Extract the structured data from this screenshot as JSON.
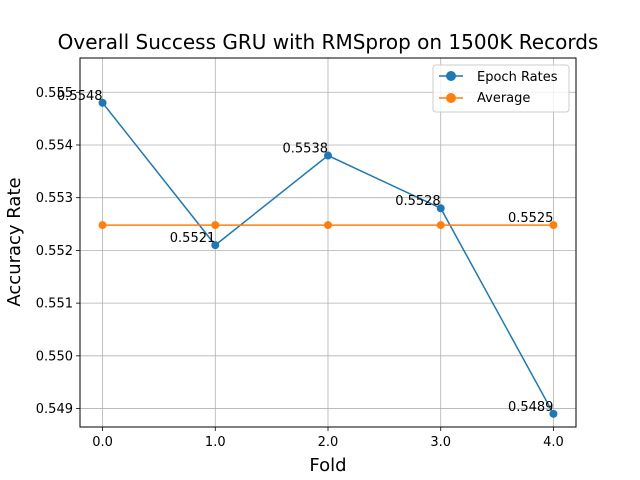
{
  "chart_data": {
    "type": "line",
    "title": "Overall Success GRU with RMSprop on 1500K Records",
    "xlabel": "Fold",
    "ylabel": "Accuracy Rate",
    "xlim": [
      -0.2,
      4.2
    ],
    "ylim": [
      0.54865,
      0.55565
    ],
    "x_ticks": [
      0.0,
      1.0,
      2.0,
      3.0,
      4.0
    ],
    "x_tick_labels": [
      "0.0",
      "1.0",
      "2.0",
      "3.0",
      "4.0"
    ],
    "y_ticks": [
      0.549,
      0.55,
      0.551,
      0.552,
      0.553,
      0.554,
      0.555
    ],
    "y_tick_labels": [
      "0.549",
      "0.550",
      "0.551",
      "0.552",
      "0.553",
      "0.554",
      "0.555"
    ],
    "grid": true,
    "legend_position": "top-right",
    "x": [
      0,
      1,
      2,
      3,
      4
    ],
    "series": [
      {
        "name": "Epoch Rates",
        "color": "#1f77b4",
        "marker": "circle",
        "values": [
          0.5548,
          0.5521,
          0.5538,
          0.5528,
          0.5489
        ]
      },
      {
        "name": "Average",
        "color": "#ff7f0e",
        "marker": "circle",
        "values": [
          0.55248,
          0.55248,
          0.55248,
          0.55248,
          0.55248
        ]
      }
    ],
    "annotations": [
      {
        "x": 0,
        "y": 0.5548,
        "text": "0.5548"
      },
      {
        "x": 1,
        "y": 0.5521,
        "text": "0.5521"
      },
      {
        "x": 2,
        "y": 0.5538,
        "text": "0.5538"
      },
      {
        "x": 3,
        "y": 0.5528,
        "text": "0.5528"
      },
      {
        "x": 4,
        "y": 0.5489,
        "text": "0.5489"
      },
      {
        "x": 4,
        "y": 0.55248,
        "text": "0.5525"
      }
    ]
  }
}
